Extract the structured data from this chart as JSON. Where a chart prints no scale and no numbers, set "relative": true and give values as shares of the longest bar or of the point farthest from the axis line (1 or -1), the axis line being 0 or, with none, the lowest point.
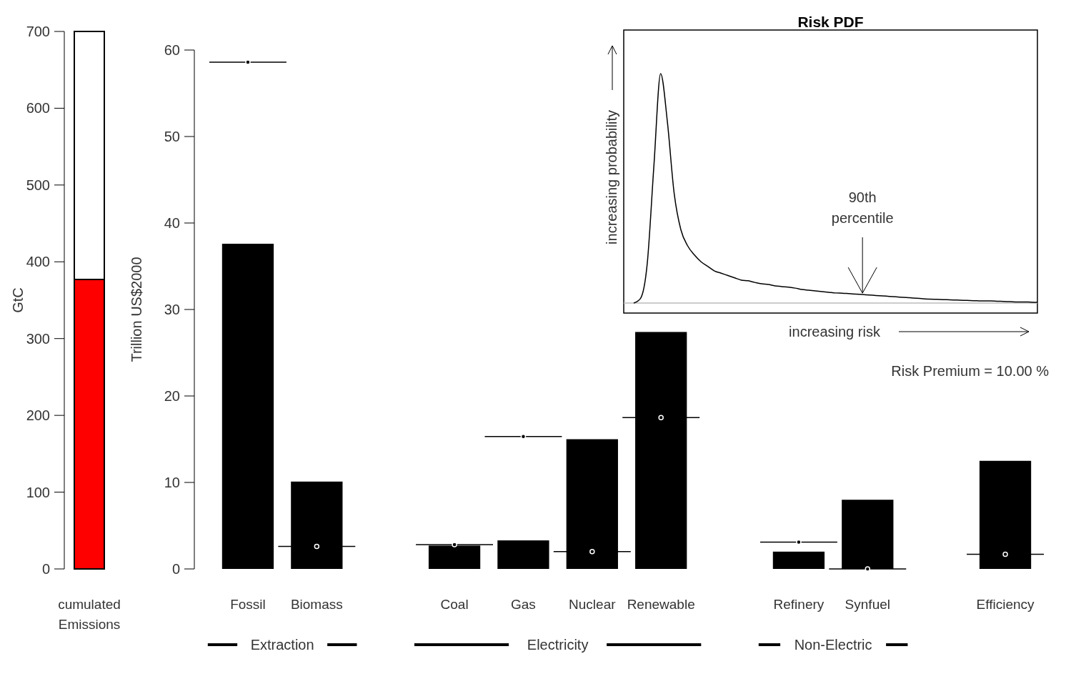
{
  "chart_data": [
    {
      "type": "bar",
      "stacked": true,
      "ylabel": "GtC",
      "categories": [
        "cumulated Emissions"
      ],
      "ylim": [
        0,
        700
      ],
      "yticks": [
        0,
        100,
        200,
        300,
        400,
        500,
        600,
        700
      ],
      "series": [
        {
          "color": "#ff0000",
          "values": [
            377
          ]
        },
        {
          "color": "#ffffff",
          "values": [
            323
          ]
        }
      ]
    },
    {
      "type": "bar",
      "ylabel": "Trillion US$2000",
      "categories": [
        "Fossil",
        "Biomass",
        null,
        "Coal",
        "Gas",
        "Nuclear",
        "Renewable",
        null,
        "Refinery",
        "Synfuel",
        null,
        "Efficiency"
      ],
      "ylim": [
        0,
        60
      ],
      "yticks": [
        0,
        10,
        20,
        30,
        40,
        50,
        60
      ],
      "annotations": [
        "Extraction",
        "Electricity",
        "Non-Electric"
      ],
      "series": [
        {
          "type": "bar",
          "color": "#000000",
          "values": [
            37.6,
            10.1,
            null,
            2.7,
            3.3,
            15.0,
            27.4,
            null,
            2.0,
            8.0,
            null,
            12.5
          ]
        },
        {
          "type": "scatter",
          "color": "#000000",
          "values": [
            58.6,
            2.6,
            null,
            2.8,
            15.3,
            2.0,
            17.5,
            null,
            3.1,
            0,
            null,
            1.7
          ]
        }
      ]
    },
    {
      "type": "line",
      "relative": true,
      "title": "Risk PDF",
      "xlabel": "increasing risk",
      "ylabel": "increasing probability",
      "annotations": [
        "90th percentile",
        "Risk Premium = 10.00 %"
      ],
      "categories": [
        null,
        null,
        null,
        null,
        null,
        null,
        null,
        null,
        null,
        null,
        null,
        null,
        null,
        null,
        null,
        null,
        null,
        null,
        null,
        null,
        null,
        null,
        null,
        null,
        null,
        null,
        null,
        null,
        null,
        null,
        null,
        null,
        null,
        null,
        null,
        null,
        null,
        null,
        null,
        null,
        null,
        null,
        null,
        null,
        null,
        null,
        null,
        null,
        null,
        null,
        null,
        null,
        null,
        null,
        null,
        null,
        null,
        null,
        null,
        null,
        null
      ],
      "series": [
        {
          "color": "#000000",
          "values": [
            0,
            0.02,
            0.17,
            0.6,
            1,
            0.79,
            0.48,
            0.32,
            0.25,
            0.21,
            0.18,
            0.16,
            0.14,
            0.13,
            0.12,
            0.11,
            0.1,
            0.097,
            0.09,
            0.084,
            0.081,
            0.075,
            0.072,
            0.069,
            0.065,
            0.059,
            0.056,
            0.053,
            0.05,
            0.047,
            0.044,
            0.043,
            0.041,
            0.039,
            0.037,
            0.035,
            0.033,
            0.031,
            0.029,
            0.027,
            0.025,
            0.023,
            0.021,
            0.019,
            0.017,
            0.016,
            0.015,
            0.014,
            0.013,
            0.012,
            0.011,
            0.01,
            0.009,
            0.009,
            0.008,
            0.007,
            0.006,
            0.005,
            0.005,
            0.004,
            0.003
          ]
        }
      ]
    }
  ]
}
